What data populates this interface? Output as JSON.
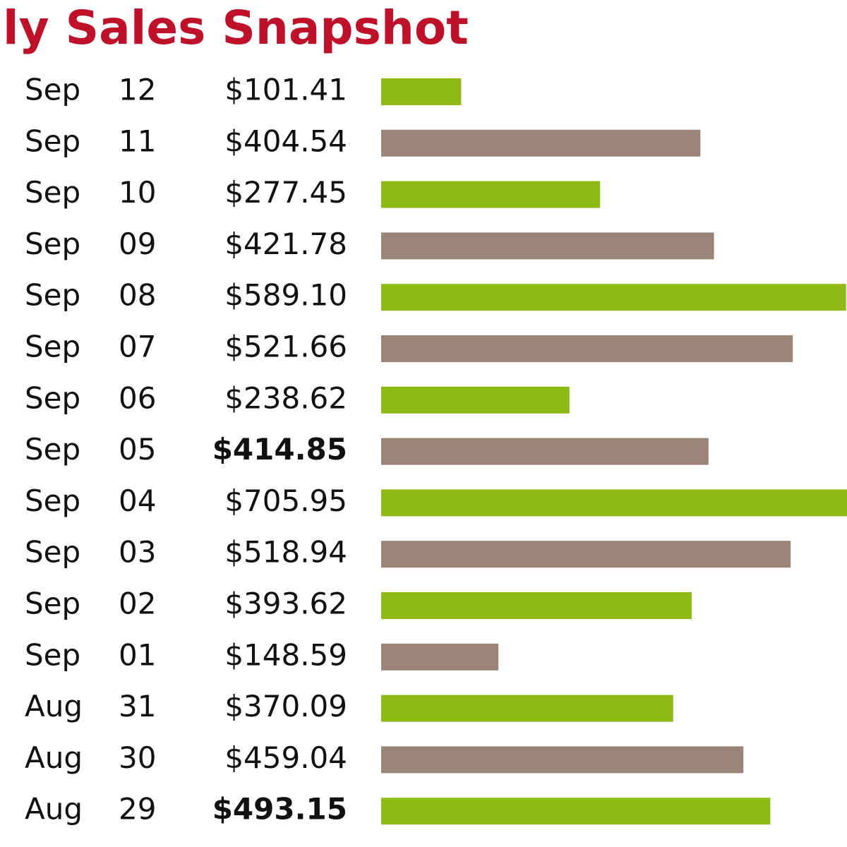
{
  "header": {
    "title": "ly Sales Snapshot"
  },
  "bar_colors": [
    "#8dba15",
    "#9a8478"
  ],
  "rows": [
    {
      "month": "Sep",
      "day": "12",
      "amount": {
        "value": 101.41,
        "label": "$101.41"
      },
      "bold": false
    },
    {
      "month": "Sep",
      "day": "11",
      "amount": {
        "value": 404.54,
        "label": "$404.54"
      },
      "bold": false
    },
    {
      "month": "Sep",
      "day": "10",
      "amount": {
        "value": 277.45,
        "label": "$277.45"
      },
      "bold": false
    },
    {
      "month": "Sep",
      "day": "09",
      "amount": {
        "value": 421.78,
        "label": "$421.78"
      },
      "bold": false
    },
    {
      "month": "Sep",
      "day": "08",
      "amount": {
        "value": 589.1,
        "label": "$589.10"
      },
      "bold": false
    },
    {
      "month": "Sep",
      "day": "07",
      "amount": {
        "value": 521.66,
        "label": "$521.66"
      },
      "bold": false
    },
    {
      "month": "Sep",
      "day": "06",
      "amount": {
        "value": 238.62,
        "label": "$238.62"
      },
      "bold": false
    },
    {
      "month": "Sep",
      "day": "05",
      "amount": {
        "value": 414.85,
        "label": "$414.85"
      },
      "bold": true
    },
    {
      "month": "Sep",
      "day": "04",
      "amount": {
        "value": 705.95,
        "label": "$705.95"
      },
      "bold": false
    },
    {
      "month": "Sep",
      "day": "03",
      "amount": {
        "value": 518.94,
        "label": "$518.94"
      },
      "bold": false
    },
    {
      "month": "Sep",
      "day": "02",
      "amount": {
        "value": 393.62,
        "label": "$393.62"
      },
      "bold": false
    },
    {
      "month": "Sep",
      "day": "01",
      "amount": {
        "value": 148.59,
        "label": "$148.59"
      },
      "bold": false
    },
    {
      "month": "Aug",
      "day": "31",
      "amount": {
        "value": 370.09,
        "label": "$370.09"
      },
      "bold": false
    },
    {
      "month": "Aug",
      "day": "30",
      "amount": {
        "value": 459.04,
        "label": "$459.04"
      },
      "bold": false
    },
    {
      "month": "Aug",
      "day": "29",
      "amount": {
        "value": 493.15,
        "label": "$493.15"
      },
      "bold": true
    }
  ]
}
